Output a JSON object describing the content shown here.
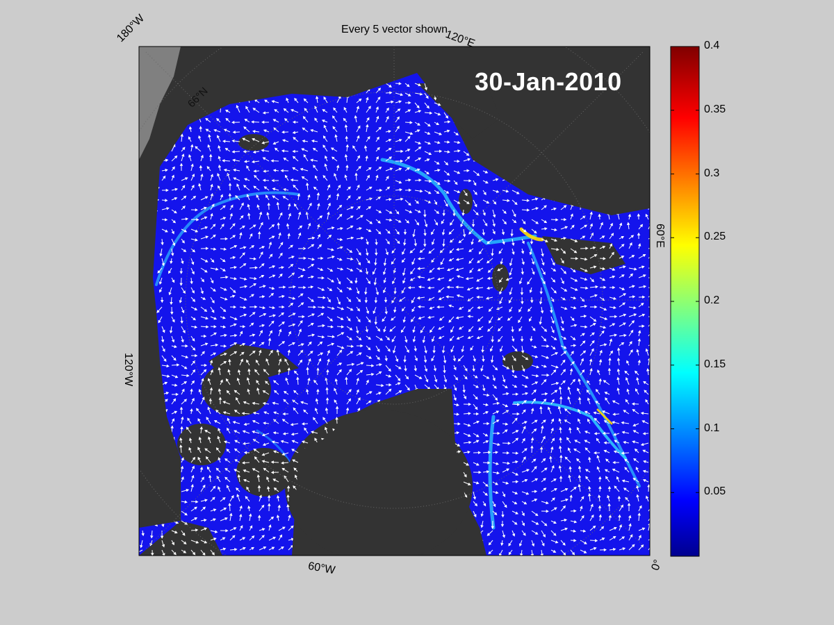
{
  "figure": {
    "title": "Every 5 vector shown",
    "date_label": "30-Jan-2010",
    "map_labels": {
      "lon_180w": "180°W",
      "lon_120e": "120°E",
      "lon_60e": "60°E",
      "lon_120w": "120°W",
      "lon_60w": "60°W",
      "lon_0": "0°",
      "lat_66n": "66°N"
    },
    "colorbar": {
      "colormap": "jet",
      "min": 0,
      "max": 0.4,
      "ticks": [
        "0.05",
        "0.1",
        "0.15",
        "0.2",
        "0.25",
        "0.3",
        "0.35",
        "0.4"
      ],
      "tick_values": [
        0.05,
        0.1,
        0.15,
        0.2,
        0.25,
        0.3,
        0.35,
        0.4
      ]
    },
    "colors": {
      "land": "#333333",
      "ocean_outside": "#808080",
      "ice_field": "#1212ee",
      "vector": "#ffffff",
      "background": "#cccccc"
    }
  }
}
